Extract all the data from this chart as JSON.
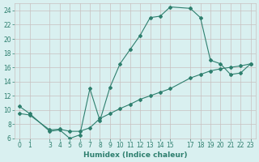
{
  "line1_x": [
    0,
    1,
    3,
    4,
    5,
    6,
    7,
    8,
    9,
    10,
    11,
    12,
    13,
    14,
    15,
    17,
    18,
    19,
    20,
    21,
    22,
    23
  ],
  "line1_y": [
    10.5,
    9.5,
    7.0,
    7.2,
    6.0,
    6.5,
    13.0,
    8.5,
    13.2,
    16.5,
    18.5,
    20.5,
    23.0,
    23.2,
    24.5,
    24.3,
    23.0,
    17.0,
    16.5,
    15.0,
    15.2,
    16.5
  ],
  "line2_x": [
    0,
    1,
    3,
    4,
    5,
    6,
    7,
    8,
    9,
    10,
    11,
    12,
    13,
    14,
    15,
    17,
    18,
    19,
    20,
    21,
    22,
    23
  ],
  "line2_y": [
    9.5,
    9.3,
    7.2,
    7.3,
    7.0,
    7.0,
    7.5,
    8.8,
    9.5,
    10.2,
    10.8,
    11.5,
    12.0,
    12.5,
    13.0,
    14.5,
    15.0,
    15.5,
    15.8,
    16.0,
    16.2,
    16.5
  ],
  "line_color": "#2e7f6e",
  "bg_color": "#d9f0f0",
  "grid_color": "#c8c0c0",
  "xlabel": "Humidex (Indice chaleur)",
  "ylim": [
    6,
    25
  ],
  "xlim": [
    -0.5,
    23.5
  ],
  "yticks": [
    6,
    8,
    10,
    12,
    14,
    16,
    18,
    20,
    22,
    24
  ],
  "xticks": [
    0,
    1,
    3,
    4,
    5,
    6,
    7,
    8,
    9,
    10,
    11,
    12,
    13,
    14,
    15,
    17,
    18,
    19,
    20,
    21,
    22,
    23
  ],
  "xlabel_fontsize": 6.5,
  "tick_fontsize": 5.5
}
